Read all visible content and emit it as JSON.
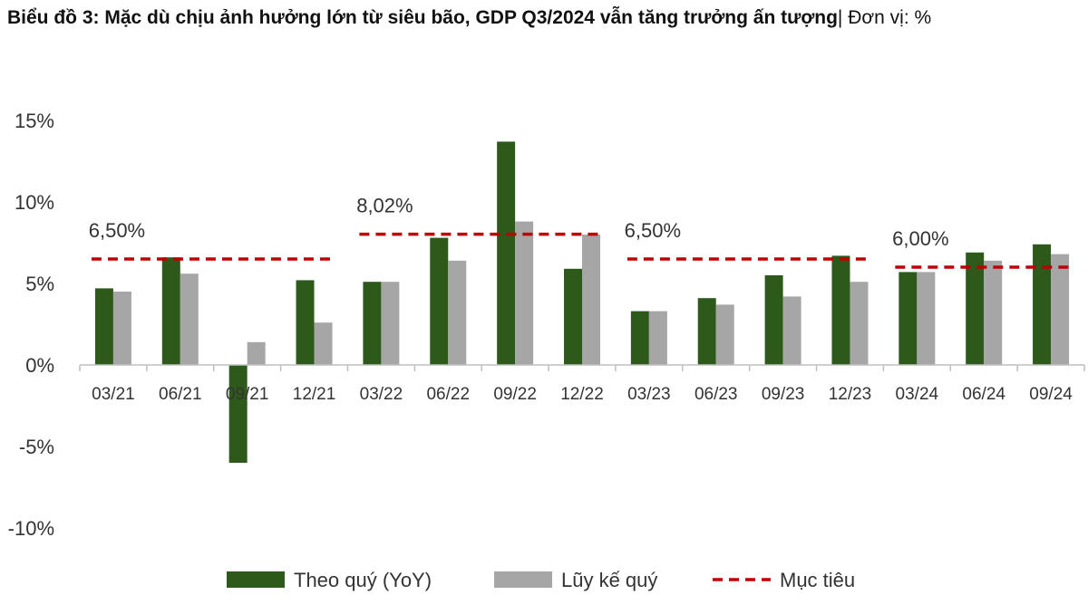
{
  "title_bold": "Biểu đồ 3: Mặc dù chịu ảnh hưởng lớn từ siêu bão, GDP Q3/2024 vẫn tăng trưởng ấn tượng",
  "title_unit": "| Đơn vị: %",
  "colors": {
    "yoy": "#2d5a1b",
    "cumulative": "#a6a6a6",
    "target": "#c00000",
    "axis": "#bfbfbf"
  },
  "chart_data": {
    "type": "bar",
    "categories": [
      "03/21",
      "06/21",
      "09/21",
      "12/21",
      "03/22",
      "06/22",
      "09/22",
      "12/22",
      "03/23",
      "06/23",
      "09/23",
      "12/23",
      "03/24",
      "06/24",
      "09/24"
    ],
    "series": [
      {
        "name": "Theo quý (YoY)",
        "values": [
          4.7,
          6.6,
          -6.0,
          5.2,
          5.1,
          7.8,
          13.7,
          5.9,
          3.3,
          4.1,
          5.5,
          6.7,
          5.7,
          6.9,
          7.4
        ]
      },
      {
        "name": "Lũy kế quý",
        "values": [
          4.5,
          5.6,
          1.4,
          2.6,
          5.1,
          6.4,
          8.8,
          8.0,
          3.3,
          3.7,
          4.2,
          5.1,
          5.7,
          6.4,
          6.8
        ]
      }
    ],
    "targets": [
      {
        "name": "Mục tiêu",
        "value": 6.5,
        "from": 0,
        "to": 3,
        "label": "6,50%"
      },
      {
        "name": "Mục tiêu",
        "value": 8.02,
        "from": 4,
        "to": 7,
        "label": "8,02%"
      },
      {
        "name": "Mục tiêu",
        "value": 6.5,
        "from": 8,
        "to": 11,
        "label": "6,50%"
      },
      {
        "name": "Mục tiêu",
        "value": 6.0,
        "from": 12,
        "to": 14,
        "label": "6,00%"
      }
    ],
    "yticks": [
      15,
      10,
      5,
      0,
      -5,
      -10
    ],
    "ytick_labels": [
      "15%",
      "10%",
      "5%",
      "0%",
      "-5%",
      "-10%"
    ],
    "ylim": [
      -10,
      15
    ],
    "grid": false,
    "legend": {
      "position": "bottom",
      "items": [
        "Theo quý (YoY)",
        "Lũy kế quý",
        "Mục tiêu"
      ]
    }
  }
}
